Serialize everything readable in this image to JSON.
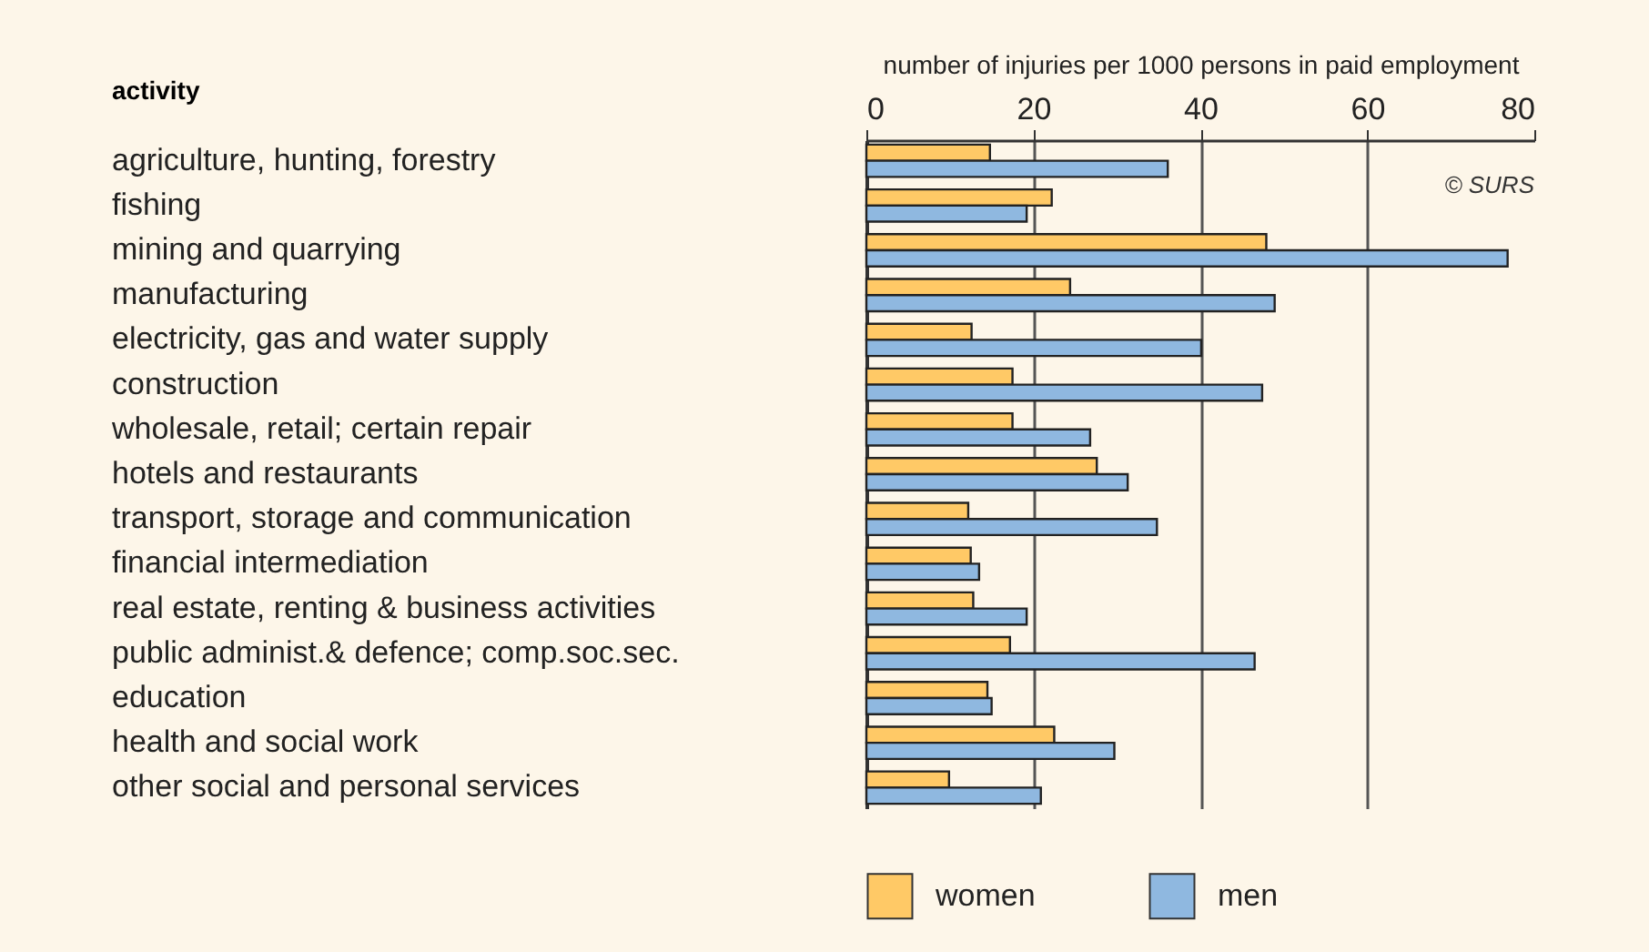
{
  "chart_data": {
    "type": "bar",
    "orientation": "horizontal",
    "xlabel": "number of injuries per 1000 persons in paid employment",
    "ylabel": "activity",
    "categories": [
      "agriculture, hunting, forestry",
      "fishing",
      "mining and quarrying",
      "manufacturing",
      "electricity, gas and water supply",
      "construction",
      "wholesale, retail; certain repair",
      "hotels and restaurants",
      "transport, storage and communication",
      "financial intermediation",
      "real estate, renting & business activities",
      "public administ.& defence; comp.soc.sec.",
      "education",
      "health and social work",
      "other social and personal services"
    ],
    "series": [
      {
        "name": "women",
        "color": "#ffc966",
        "values": [
          14.8,
          22.2,
          47.9,
          24.4,
          12.6,
          17.5,
          17.5,
          27.6,
          12.2,
          12.5,
          12.8,
          17.2,
          14.5,
          22.5,
          9.9
        ]
      },
      {
        "name": "men",
        "color": "#8fb8e0",
        "values": [
          36.1,
          19.2,
          76.8,
          48.9,
          40.1,
          47.4,
          26.8,
          31.3,
          34.8,
          13.5,
          19.2,
          46.5,
          15.0,
          29.7,
          20.9
        ]
      }
    ],
    "xlim": [
      0,
      80
    ],
    "xticks": [
      0,
      20,
      40,
      60,
      80
    ],
    "grid": "x",
    "legend": "bottom",
    "annotations": [
      "© SURS"
    ]
  }
}
